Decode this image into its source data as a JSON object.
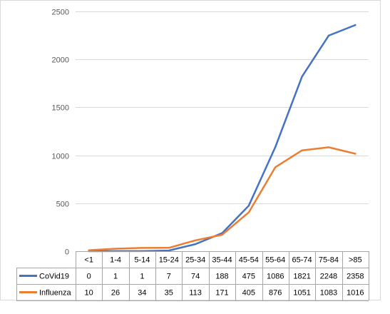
{
  "chart_data": {
    "type": "line",
    "title": "",
    "xlabel": "",
    "ylabel": "",
    "ylim": [
      0,
      2500
    ],
    "yticks": [
      0,
      500,
      1000,
      1500,
      2000,
      2500
    ],
    "grid": "horizontal",
    "legend": "data-table",
    "categories": [
      "<1",
      "1-4",
      "5-14",
      "15-24",
      "25-34",
      "35-44",
      "45-54",
      "55-64",
      "65-74",
      "75-84",
      ">85"
    ],
    "series": [
      {
        "name": "CoVid19",
        "color": "#4472C4",
        "values": [
          0,
          1,
          1,
          7,
          74,
          188,
          475,
          1086,
          1821,
          2248,
          2358
        ]
      },
      {
        "name": "Influenza",
        "color": "#ED7D31",
        "values": [
          10,
          26,
          34,
          35,
          113,
          171,
          405,
          876,
          1051,
          1083,
          1016
        ]
      }
    ]
  }
}
